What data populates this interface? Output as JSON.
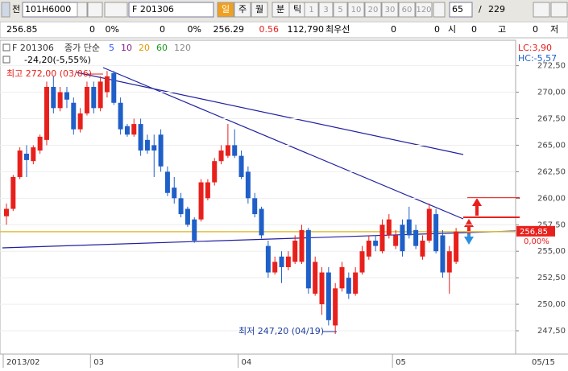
{
  "toolbar": {
    "icon_label": "전",
    "code": "101H6000",
    "name": "F 201306",
    "periods": [
      "일",
      "주",
      "월",
      "분",
      "틱"
    ],
    "intervals": [
      "1",
      "3",
      "5",
      "10",
      "20",
      "30",
      "60",
      "120"
    ],
    "count": "65",
    "separator": "/",
    "total": "229"
  },
  "info_bar": [
    "256.85",
    "0",
    "0%",
    "0",
    "0%",
    "256.29",
    "0.56",
    "112,790",
    "최우선",
    "0",
    "0",
    "시",
    "0",
    "고",
    "0",
    "저"
  ],
  "chart_data": {
    "type": "candlestick",
    "name": "F 201306",
    "ma_type": "종가 단순",
    "ma_periods": [
      {
        "label": 5,
        "color": "#3050ff"
      },
      {
        "label": 10,
        "color": "#8a1a8a"
      },
      {
        "label": 20,
        "color": "#e09a00"
      },
      {
        "label": 60,
        "color": "#1a9a1a"
      },
      {
        "label": 120,
        "color": "#888888"
      }
    ],
    "change_label": "-24,20(-5,55%)",
    "high_annotation": "최고 272,00 (03/06)",
    "low_annotation": "최저 247,20 (04/19)",
    "lc": "LC:3,90",
    "hc": "HC:-5,57",
    "price_label": "256,85",
    "pct_label": "0,00%",
    "last_date": "05/15",
    "up_color": "#e8201c",
    "down_color": "#1f5fc8",
    "categories": [
      "2013/02",
      null,
      null,
      null,
      null,
      null,
      null,
      null,
      null,
      null,
      null,
      null,
      null,
      "03",
      null,
      null,
      null,
      null,
      null,
      null,
      null,
      null,
      null,
      null,
      null,
      null,
      null,
      null,
      null,
      null,
      null,
      null,
      null,
      null,
      null,
      "04",
      null,
      null,
      null,
      null,
      null,
      null,
      null,
      null,
      null,
      null,
      null,
      null,
      null,
      null,
      null,
      null,
      null,
      null,
      null,
      null,
      null,
      null,
      "05",
      null,
      null,
      null,
      null,
      null,
      null,
      null,
      null,
      null
    ],
    "open": [
      258.3,
      259.0,
      262.0,
      264.2,
      263.5,
      264.5,
      265.5,
      270.5,
      268.5,
      270.0,
      269.0,
      266.5,
      268.0,
      270.5,
      268.5,
      270.0,
      271.8,
      269.0,
      266.8,
      266.0,
      267.0,
      265.5,
      265.0,
      266.0,
      262.5,
      261.0,
      260.0,
      259.0,
      258.0,
      258.0,
      260.0,
      261.5,
      263.5,
      264.0,
      265.0,
      264.0,
      262.5,
      260.0,
      259.0,
      255.5,
      253.0,
      254.5,
      253.5,
      254.0,
      254.0,
      257.0,
      251.0,
      250.0,
      253.0,
      248.0,
      251.5,
      252.5,
      251.0,
      253.0,
      254.5,
      256.0,
      255.0,
      256.5,
      255.5,
      257.5,
      258.0,
      257.0,
      254.5,
      256.0,
      258.5,
      256.5,
      253.0,
      254.0
    ],
    "high": [
      259.5,
      262.2,
      264.8,
      265.0,
      265.0,
      266.0,
      271.0,
      271.5,
      270.5,
      270.5,
      269.5,
      268.5,
      271.0,
      271.0,
      271.5,
      272.0,
      272.0,
      269.5,
      267.0,
      267.5,
      267.5,
      266.0,
      266.0,
      266.5,
      263.0,
      262.0,
      260.5,
      259.2,
      258.2,
      261.8,
      261.8,
      263.8,
      265.0,
      267.0,
      266.5,
      264.5,
      263.0,
      260.5,
      259.2,
      256.0,
      254.5,
      255.0,
      255.0,
      256.5,
      257.5,
      257.2,
      254.5,
      253.5,
      253.5,
      252.0,
      254.0,
      253.0,
      253.5,
      255.5,
      256.5,
      256.5,
      258.0,
      258.5,
      257.0,
      258.0,
      259.2,
      257.5,
      256.5,
      259.5,
      259.0,
      257.0,
      255.5,
      257.2
    ],
    "low": [
      257.5,
      258.8,
      261.8,
      262.0,
      263.2,
      264.2,
      265.0,
      268.0,
      268.2,
      268.5,
      266.0,
      266.2,
      267.8,
      268.0,
      268.2,
      269.5,
      268.8,
      266.0,
      265.8,
      265.8,
      264.0,
      264.2,
      262.0,
      262.5,
      260.2,
      259.5,
      258.2,
      257.3,
      255.8,
      257.8,
      259.8,
      261.2,
      263.2,
      263.8,
      263.8,
      261.8,
      259.5,
      258.2,
      256.2,
      252.5,
      252.8,
      252.0,
      253.2,
      253.8,
      253.8,
      251.0,
      250.8,
      249.0,
      248.0,
      247.2,
      251.2,
      250.5,
      250.8,
      252.8,
      254.2,
      255.0,
      254.8,
      256.2,
      255.2,
      254.5,
      256.2,
      255.2,
      254.2,
      255.8,
      254.8,
      252.5,
      251.0,
      253.8
    ],
    "close": [
      259.0,
      262.0,
      264.5,
      263.6,
      264.8,
      265.8,
      270.5,
      268.5,
      270.0,
      269.3,
      266.5,
      268.0,
      270.5,
      268.5,
      271.0,
      271.5,
      269.0,
      266.5,
      266.0,
      267.0,
      264.5,
      264.5,
      264.5,
      263.0,
      260.5,
      260.0,
      258.5,
      257.5,
      256.0,
      261.5,
      261.5,
      263.5,
      264.5,
      265.0,
      264.0,
      262.0,
      260.0,
      258.5,
      256.5,
      253.0,
      254.0,
      253.5,
      254.5,
      256.0,
      257.0,
      251.5,
      254.0,
      253.0,
      248.5,
      251.5,
      253.5,
      251.0,
      253.0,
      255.0,
      256.0,
      255.5,
      257.5,
      258.0,
      256.5,
      255.0,
      256.5,
      255.5,
      256.0,
      259.0,
      255.0,
      253.0,
      255.0,
      256.85
    ],
    "ylim": [
      245.3,
      274.9
    ],
    "yticks": [
      {
        "value": 247.5,
        "label": "247,50"
      },
      {
        "value": 250,
        "label": "250,00"
      },
      {
        "value": 252.5,
        "label": "252,50"
      },
      {
        "value": 255,
        "label": "255,00"
      },
      {
        "value": 257.5,
        "label": "257,50"
      },
      {
        "value": 260,
        "label": "260,00"
      },
      {
        "value": 262.5,
        "label": "262,50"
      },
      {
        "value": 265,
        "label": "265,00"
      },
      {
        "value": 267.5,
        "label": "267,50"
      },
      {
        "value": 270,
        "label": "270,00"
      },
      {
        "value": 272.5,
        "label": "272,50"
      }
    ]
  }
}
